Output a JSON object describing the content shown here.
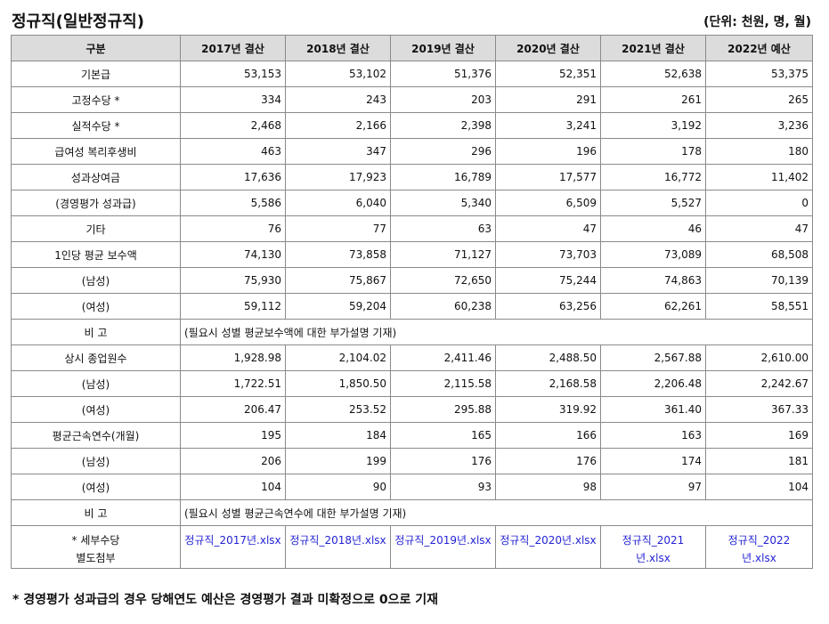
{
  "page": {
    "title": "정규직(일반정규직)",
    "unit": "(단위: 천원, 명, 월)",
    "footnote": "* 경영평가 성과급의 경우 당해연도 예산은 경영평가 결과 미확정으로 0으로 기재"
  },
  "table": {
    "headers": [
      "구분",
      "2017년 결산",
      "2018년 결산",
      "2019년 결산",
      "2020년 결산",
      "2021년 결산",
      "2022년 예산"
    ],
    "rows": [
      {
        "label": "기본급",
        "values": [
          "53,153",
          "53,102",
          "51,376",
          "52,351",
          "52,638",
          "53,375"
        ]
      },
      {
        "label": "고정수당 *",
        "values": [
          "334",
          "243",
          "203",
          "291",
          "261",
          "265"
        ]
      },
      {
        "label": "실적수당 *",
        "values": [
          "2,468",
          "2,166",
          "2,398",
          "3,241",
          "3,192",
          "3,236"
        ]
      },
      {
        "label": "급여성 복리후생비",
        "values": [
          "463",
          "347",
          "296",
          "196",
          "178",
          "180"
        ]
      },
      {
        "label": "성과상여금",
        "values": [
          "17,636",
          "17,923",
          "16,789",
          "17,577",
          "16,772",
          "11,402"
        ]
      },
      {
        "label": "(경영평가 성과급)",
        "values": [
          "5,586",
          "6,040",
          "5,340",
          "6,509",
          "5,527",
          "0"
        ]
      },
      {
        "label": "기타",
        "values": [
          "76",
          "77",
          "63",
          "47",
          "46",
          "47"
        ]
      },
      {
        "label": "1인당 평균 보수액",
        "values": [
          "74,130",
          "73,858",
          "71,127",
          "73,703",
          "73,089",
          "68,508"
        ]
      },
      {
        "label": "(남성)",
        "values": [
          "75,930",
          "75,867",
          "72,650",
          "75,244",
          "74,863",
          "70,139"
        ]
      },
      {
        "label": "(여성)",
        "values": [
          "59,112",
          "59,204",
          "60,238",
          "63,256",
          "62,261",
          "58,551"
        ]
      },
      {
        "label": "비 고",
        "note": "(필요시 성별 평균보수액에 대한 부가설명 기재)"
      },
      {
        "label": "상시 종업원수",
        "values": [
          "1,928.98",
          "2,104.02",
          "2,411.46",
          "2,488.50",
          "2,567.88",
          "2,610.00"
        ]
      },
      {
        "label": "(남성)",
        "values": [
          "1,722.51",
          "1,850.50",
          "2,115.58",
          "2,168.58",
          "2,206.48",
          "2,242.67"
        ]
      },
      {
        "label": "(여성)",
        "values": [
          "206.47",
          "253.52",
          "295.88",
          "319.92",
          "361.40",
          "367.33"
        ]
      },
      {
        "label": "평균근속연수(개월)",
        "values": [
          "195",
          "184",
          "165",
          "166",
          "163",
          "169"
        ]
      },
      {
        "label": "(남성)",
        "values": [
          "206",
          "199",
          "176",
          "176",
          "174",
          "181"
        ]
      },
      {
        "label": "(여성)",
        "values": [
          "104",
          "90",
          "93",
          "98",
          "97",
          "104"
        ]
      },
      {
        "label": "비 고",
        "note": "(필요시 성별 평균근속연수에 대한 부가설명 기재)"
      }
    ],
    "attachments": {
      "label_line1": "* 세부수당",
      "label_line2": "별도첨부",
      "files": [
        {
          "line1": "정규직_2017년.xlsx",
          "line2": ""
        },
        {
          "line1": "정규직_2018년.xlsx",
          "line2": ""
        },
        {
          "line1": "정규직_2019년.xlsx",
          "line2": ""
        },
        {
          "line1": "정규직_2020년.xlsx",
          "line2": ""
        },
        {
          "line1": "정규직_2021",
          "line2": "년.xlsx"
        },
        {
          "line1": "정규직_2022",
          "line2": "년.xlsx"
        }
      ]
    }
  }
}
